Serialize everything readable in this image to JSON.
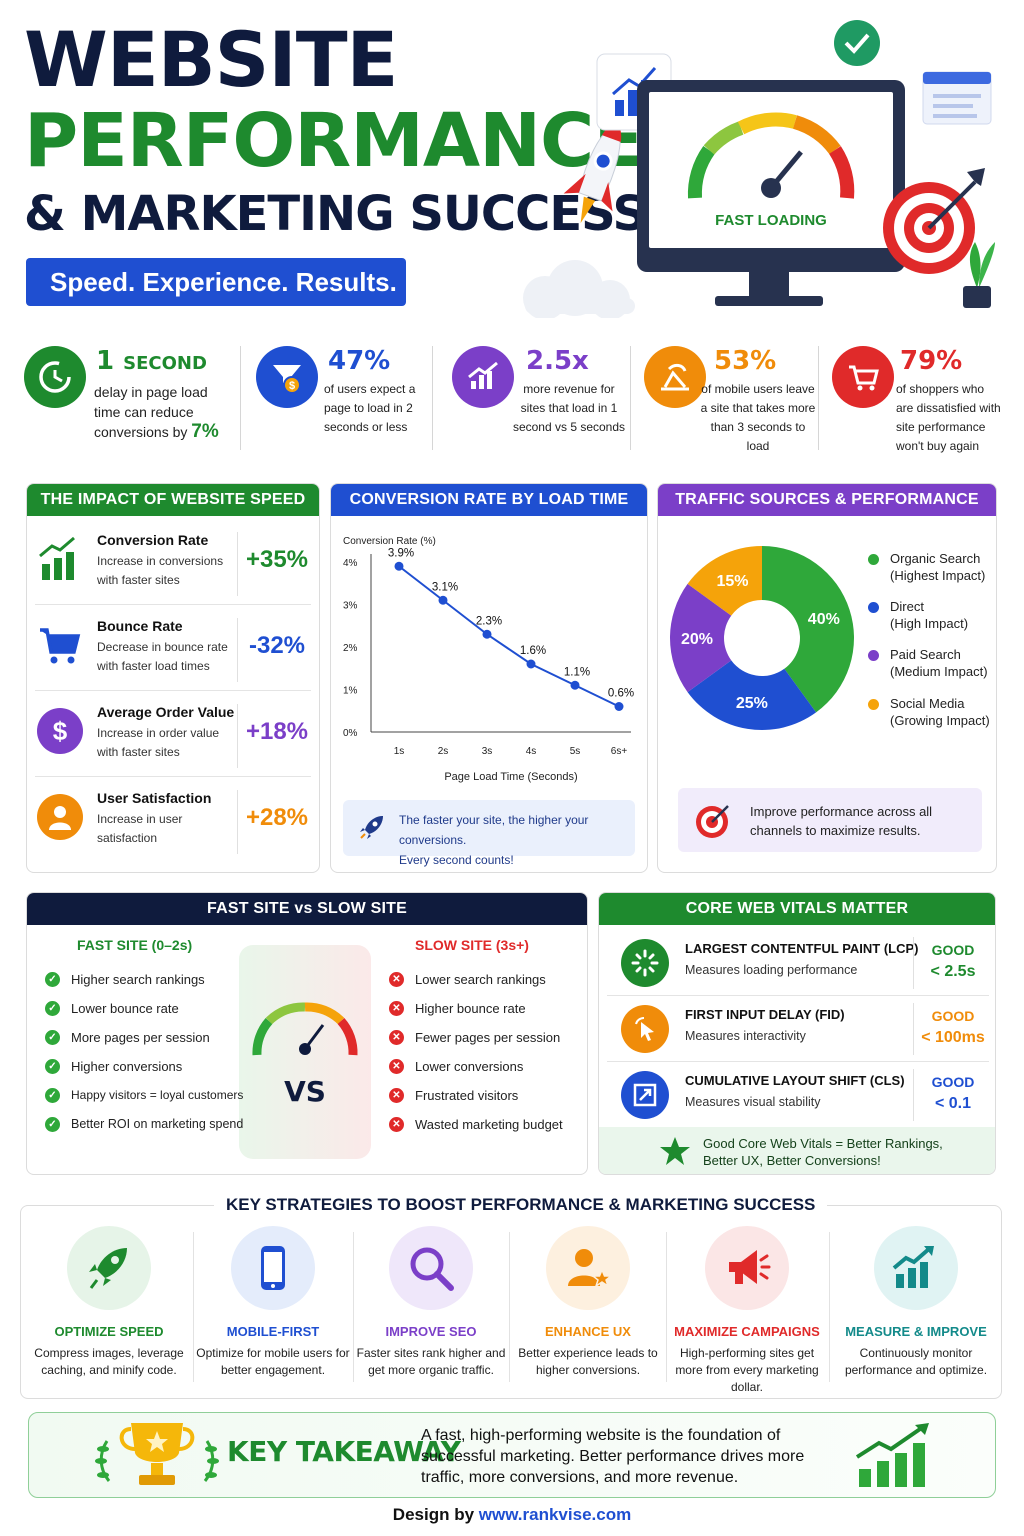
{
  "header": {
    "title_line1": "WEBSITE",
    "title_line2": "PERFORMANCE",
    "title_line3": "& MARKETING SUCCESS",
    "tagline": "Speed. Experience. Results.",
    "monitor_label": "FAST LOADING"
  },
  "stats": [
    {
      "big": "1",
      "big_suffix": "SECOND",
      "text": "delay in page load time can reduce conversions by",
      "highlight": "7%",
      "color": "#1e8a2e",
      "icon": "clock-icon"
    },
    {
      "big": "47%",
      "text": "of users expect a page to load in 2 seconds or less",
      "color": "#1f4fd1",
      "icon": "money-funnel-icon"
    },
    {
      "big": "2.5x",
      "text": "more revenue for sites that load in 1 second vs 5 seconds",
      "color": "#7b3fc8",
      "icon": "growth-chart-icon"
    },
    {
      "big": "53%",
      "text": "of mobile users leave a site that takes more than 3 seconds to load",
      "color": "#f08c0a",
      "icon": "beach-chair-icon"
    },
    {
      "big": "79%",
      "text": "of shoppers who are dissatisfied with site performance won't buy again",
      "color": "#e02a2a",
      "icon": "cart-icon"
    }
  ],
  "impact": {
    "heading": "THE IMPACT OF WEBSITE SPEED",
    "rows": [
      {
        "title": "Conversion Rate",
        "desc": "Increase in conversions with faster sites",
        "value": "+35%",
        "color": "#1e8a2e",
        "icon": "bar-chart-up-icon"
      },
      {
        "title": "Bounce Rate",
        "desc": "Decrease in bounce rate with faster load times",
        "value": "-32%",
        "color": "#1f4fd1",
        "icon": "cart-icon"
      },
      {
        "title": "Average Order Value",
        "desc": "Increase in order value with faster sites",
        "value": "+18%",
        "color": "#7b3fc8",
        "icon": "dollar-icon"
      },
      {
        "title": "User Satisfaction",
        "desc": "Increase in user satisfaction",
        "value": "+28%",
        "color": "#f08c0a",
        "icon": "user-icon"
      }
    ]
  },
  "conversion": {
    "heading": "CONVERSION RATE BY LOAD TIME",
    "note_line1": "The faster your site, the higher your conversions.",
    "note_line2": "Every second counts!"
  },
  "traffic": {
    "heading": "TRAFFIC SOURCES & PERFORMANCE",
    "note": "Improve performance across all channels to maximize results."
  },
  "chart_data": [
    {
      "type": "line",
      "title": "",
      "ylabel": "Conversion Rate (%)",
      "xlabel": "Page Load Time (Seconds)",
      "categories": [
        "1s",
        "2s",
        "3s",
        "4s",
        "5s",
        "6s+"
      ],
      "values": [
        3.9,
        3.1,
        2.3,
        1.6,
        1.1,
        0.6
      ],
      "data_labels": [
        "3.9%",
        "3.1%",
        "2.3%",
        "1.6%",
        "1.1%",
        "0.6%"
      ],
      "yticks": [
        "0%",
        "1%",
        "2%",
        "3%",
        "4%"
      ],
      "ylim": [
        0,
        4
      ],
      "color": "#1f4fd1"
    },
    {
      "type": "pie",
      "slices": [
        {
          "name": "Organic Search",
          "sub": "(Highest Impact)",
          "value": 40,
          "label": "40%",
          "color": "#2fa83a"
        },
        {
          "name": "Direct",
          "sub": "(High Impact)",
          "value": 25,
          "label": "25%",
          "color": "#1f4fd1"
        },
        {
          "name": "Paid Search",
          "sub": "(Medium Impact)",
          "value": 20,
          "label": "20%",
          "color": "#7b3fc8"
        },
        {
          "name": "Social Media",
          "sub": "(Growing Impact)",
          "value": 15,
          "label": "15%",
          "color": "#f5a30a"
        }
      ]
    }
  ],
  "fastslow": {
    "heading": "FAST SITE vs SLOW SITE",
    "fast_title": "FAST SITE (0–2s)",
    "slow_title": "SLOW SITE (3s+)",
    "vs": "VS",
    "fast": [
      "Higher search rankings",
      "Lower bounce rate",
      "More pages per session",
      "Higher conversions",
      "Happy visitors = loyal customers",
      "Better ROI on marketing spend"
    ],
    "slow": [
      "Lower search rankings",
      "Higher bounce rate",
      "Fewer pages per session",
      "Lower conversions",
      "Frustrated visitors",
      "Wasted marketing budget"
    ]
  },
  "cwv": {
    "heading": "CORE WEB VITALS MATTER",
    "items": [
      {
        "title": "LARGEST CONTENTFUL PAINT (LCP)",
        "desc": "Measures loading performance",
        "good": "GOOD",
        "value": "< 2.5s",
        "color": "#1e8a2e",
        "icon": "loading-icon"
      },
      {
        "title": "FIRST INPUT DELAY (FID)",
        "desc": "Measures interactivity",
        "good": "GOOD",
        "value": "< 100ms",
        "color": "#f08c0a",
        "icon": "pointer-click-icon"
      },
      {
        "title": "CUMULATIVE LAYOUT SHIFT (CLS)",
        "desc": "Measures visual stability",
        "good": "GOOD",
        "value": "< 0.1",
        "color": "#1f4fd1",
        "icon": "layout-shift-icon"
      }
    ],
    "footer_line1": "Good Core Web Vitals = Better Rankings,",
    "footer_line2": "Better UX, Better Conversions!"
  },
  "strategies": {
    "heading": "KEY STRATEGIES TO BOOST PERFORMANCE & MARKETING SUCCESS",
    "items": [
      {
        "title": "OPTIMIZE SPEED",
        "desc": "Compress images, leverage caching, and minify code.",
        "color": "#1e8a2e",
        "bg": "#e6f4e8",
        "icon": "rocket-icon"
      },
      {
        "title": "MOBILE-FIRST",
        "desc": "Optimize for mobile users for better engagement.",
        "color": "#1f4fd1",
        "bg": "#e4ecfb",
        "icon": "smartphone-icon"
      },
      {
        "title": "IMPROVE SEO",
        "desc": "Faster sites rank higher and get more organic traffic.",
        "color": "#7b3fc8",
        "bg": "#efe7fa",
        "icon": "magnifier-icon"
      },
      {
        "title": "ENHANCE UX",
        "desc": "Better experience leads to higher conversions.",
        "color": "#f08c0a",
        "bg": "#fdf0df",
        "icon": "user-star-icon"
      },
      {
        "title": "MAXIMIZE CAMPAIGNS",
        "desc": "High-performing sites get more from every marketing dollar.",
        "color": "#e02a2a",
        "bg": "#fbe6e6",
        "icon": "megaphone-icon"
      },
      {
        "title": "MEASURE & IMPROVE",
        "desc": "Continuously monitor performance and optimize.",
        "color": "#138a8a",
        "bg": "#e0f3f3",
        "icon": "analytics-icon"
      }
    ]
  },
  "takeaway": {
    "title": "KEY TAKEAWAY",
    "line1": "A fast, high-performing website is the foundation of",
    "line2": "successful marketing. Better performance drives more",
    "line3": "traffic, more conversions, and more revenue."
  },
  "footer": {
    "prefix": "Design by ",
    "link": "www.rankvise.com"
  }
}
